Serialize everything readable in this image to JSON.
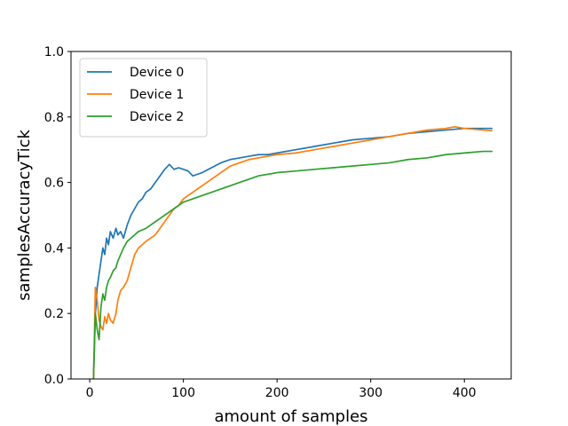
{
  "chart_data": {
    "type": "line",
    "title": "",
    "xlabel": "amount of samples",
    "ylabel": "samplesAccuracyTick",
    "xlim": [
      -20,
      450
    ],
    "ylim": [
      0.0,
      1.0
    ],
    "xticks": [
      0,
      100,
      200,
      300,
      400
    ],
    "yticks": [
      0.0,
      0.2,
      0.4,
      0.6,
      0.8,
      1.0
    ],
    "ytick_labels": [
      "0.0",
      "0.2",
      "0.4",
      "0.6",
      "0.8",
      "1.0"
    ],
    "grid": false,
    "legend": "top-left",
    "series": [
      {
        "name": "Device 0",
        "color": "#1f77b4",
        "x": [
          4,
          6,
          8,
          10,
          12,
          14,
          16,
          18,
          20,
          22,
          25,
          28,
          30,
          33,
          36,
          40,
          44,
          48,
          52,
          56,
          60,
          65,
          70,
          75,
          80,
          85,
          90,
          95,
          100,
          105,
          110,
          115,
          120,
          130,
          140,
          150,
          160,
          170,
          180,
          190,
          200,
          220,
          240,
          260,
          280,
          300,
          320,
          340,
          360,
          380,
          400,
          420,
          430
        ],
        "y": [
          0.0,
          0.2,
          0.28,
          0.32,
          0.36,
          0.4,
          0.38,
          0.43,
          0.41,
          0.45,
          0.43,
          0.46,
          0.44,
          0.45,
          0.43,
          0.47,
          0.5,
          0.52,
          0.54,
          0.55,
          0.57,
          0.58,
          0.6,
          0.62,
          0.64,
          0.655,
          0.64,
          0.645,
          0.64,
          0.635,
          0.62,
          0.625,
          0.63,
          0.645,
          0.66,
          0.67,
          0.675,
          0.68,
          0.685,
          0.685,
          0.69,
          0.7,
          0.71,
          0.72,
          0.73,
          0.735,
          0.74,
          0.75,
          0.755,
          0.76,
          0.765,
          0.765,
          0.765
        ]
      },
      {
        "name": "Device 1",
        "color": "#ff7f0e",
        "x": [
          4,
          6,
          8,
          10,
          12,
          14,
          16,
          18,
          20,
          22,
          25,
          28,
          30,
          33,
          36,
          40,
          44,
          48,
          52,
          56,
          60,
          65,
          70,
          75,
          80,
          85,
          90,
          95,
          100,
          105,
          110,
          115,
          120,
          130,
          140,
          150,
          160,
          170,
          180,
          190,
          200,
          220,
          240,
          260,
          280,
          300,
          320,
          340,
          360,
          380,
          390,
          400,
          420,
          430
        ],
        "y": [
          0.0,
          0.28,
          0.24,
          0.18,
          0.16,
          0.15,
          0.19,
          0.17,
          0.2,
          0.18,
          0.17,
          0.2,
          0.24,
          0.27,
          0.28,
          0.3,
          0.34,
          0.38,
          0.4,
          0.41,
          0.42,
          0.43,
          0.44,
          0.46,
          0.48,
          0.5,
          0.52,
          0.53,
          0.55,
          0.56,
          0.57,
          0.58,
          0.59,
          0.61,
          0.63,
          0.65,
          0.66,
          0.67,
          0.675,
          0.68,
          0.685,
          0.69,
          0.7,
          0.71,
          0.72,
          0.73,
          0.74,
          0.75,
          0.76,
          0.765,
          0.77,
          0.765,
          0.76,
          0.758
        ]
      },
      {
        "name": "Device 2",
        "color": "#2ca02c",
        "x": [
          4,
          6,
          8,
          10,
          12,
          14,
          16,
          18,
          20,
          22,
          25,
          28,
          30,
          33,
          36,
          40,
          44,
          48,
          52,
          56,
          60,
          65,
          70,
          75,
          80,
          85,
          90,
          95,
          100,
          105,
          110,
          115,
          120,
          130,
          140,
          150,
          160,
          170,
          180,
          190,
          200,
          220,
          240,
          260,
          280,
          300,
          320,
          340,
          360,
          380,
          400,
          420,
          430
        ],
        "y": [
          0.0,
          0.2,
          0.15,
          0.12,
          0.22,
          0.26,
          0.24,
          0.28,
          0.3,
          0.31,
          0.33,
          0.34,
          0.36,
          0.38,
          0.4,
          0.42,
          0.43,
          0.44,
          0.45,
          0.455,
          0.46,
          0.47,
          0.48,
          0.49,
          0.5,
          0.51,
          0.52,
          0.53,
          0.54,
          0.545,
          0.55,
          0.555,
          0.56,
          0.57,
          0.58,
          0.59,
          0.6,
          0.61,
          0.62,
          0.625,
          0.63,
          0.635,
          0.64,
          0.645,
          0.65,
          0.655,
          0.66,
          0.67,
          0.675,
          0.685,
          0.69,
          0.695,
          0.695
        ]
      }
    ]
  }
}
